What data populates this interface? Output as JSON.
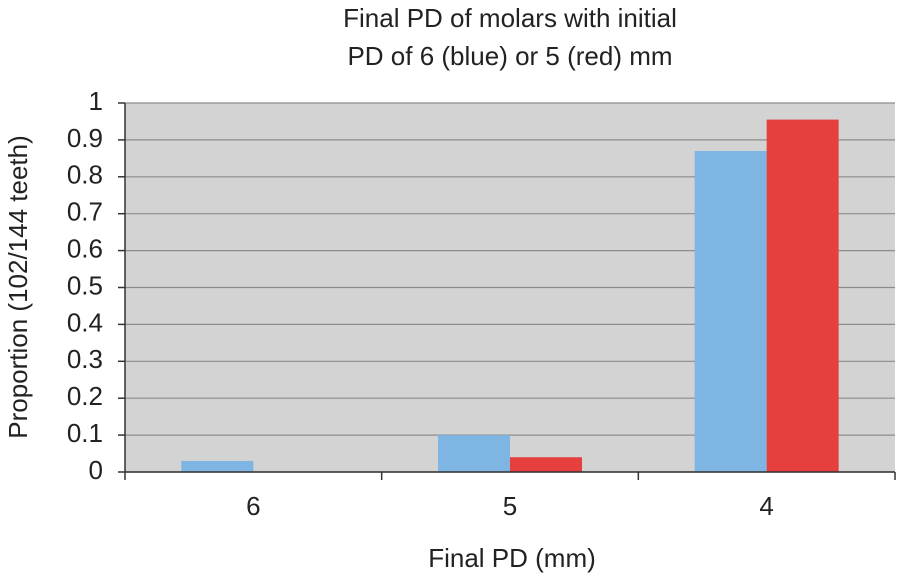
{
  "chart_data": {
    "type": "bar",
    "title": [
      "Final  PD of molars with initial",
      "PD of 6 (blue) or 5 (red) mm"
    ],
    "x_label": "Final PD (mm)",
    "y_label": "Proportion (102/144 teeth)",
    "categories": [
      "6",
      "5",
      "4"
    ],
    "series": [
      {
        "color": "#7fb5e3",
        "values": [
          0.03,
          0.1,
          0.87
        ]
      },
      {
        "color": "#e5403e",
        "values": [
          0,
          0.04,
          0.955
        ]
      }
    ],
    "ylim": [
      0,
      1
    ],
    "yticks": [
      0,
      0.1,
      0.2,
      0.3,
      0.4,
      0.5,
      0.6,
      0.7,
      0.8,
      0.9,
      1
    ],
    "grid": true,
    "plot_background": "#d3d3d3"
  }
}
